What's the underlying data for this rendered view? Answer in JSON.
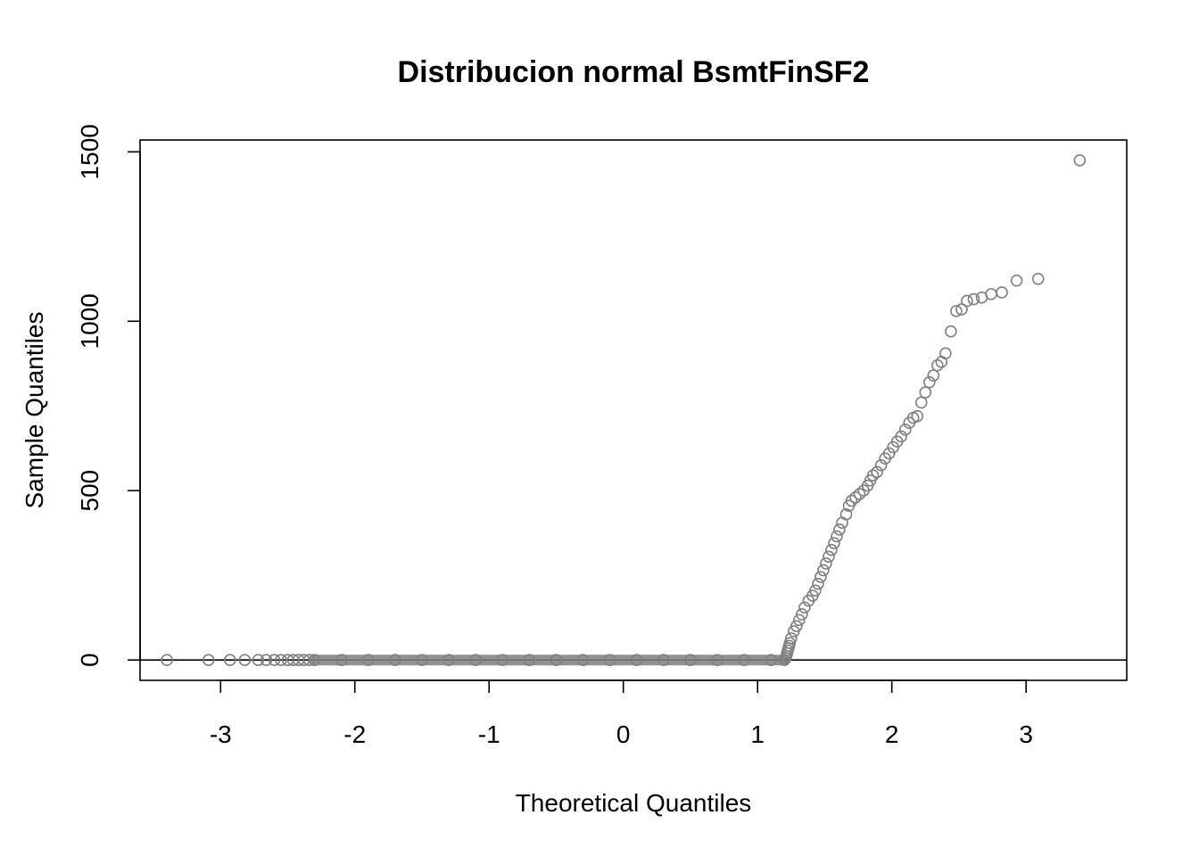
{
  "chart_data": {
    "type": "scatter",
    "title": "Distribucion normal BsmtFinSF2",
    "xlabel": "Theoretical Quantiles",
    "ylabel": "Sample Quantiles",
    "xlim": [
      -3.6,
      3.75
    ],
    "ylim": [
      -60,
      1535
    ],
    "xticks": [
      -3,
      -2,
      -1,
      0,
      1,
      2,
      3
    ],
    "xtick_labels": [
      "-3",
      "-2",
      "-1",
      "0",
      "1",
      "2",
      "3"
    ],
    "yticks": [
      0,
      500,
      1000,
      1500
    ],
    "ytick_labels": [
      "0",
      "500",
      "1000",
      "1500"
    ],
    "reference_line": {
      "type": "horizontal",
      "y": 0
    },
    "grid": false,
    "legend": "none",
    "point_color": "#808080",
    "x": [
      -3.4,
      -3.09,
      -2.93,
      -2.82,
      -2.72,
      -2.66,
      -2.6,
      -2.55,
      -2.5,
      -2.46,
      -2.42,
      -2.38,
      -2.34,
      -2.3,
      -2.1,
      -1.9,
      -1.7,
      -1.5,
      -1.3,
      -1.1,
      -0.9,
      -0.7,
      -0.5,
      -0.3,
      -0.1,
      0.1,
      0.3,
      0.5,
      0.7,
      0.9,
      1.1,
      1.2,
      1.21,
      1.215,
      1.22,
      1.225,
      1.23,
      1.235,
      1.24,
      1.25,
      1.27,
      1.29,
      1.31,
      1.33,
      1.35,
      1.38,
      1.41,
      1.43,
      1.45,
      1.47,
      1.49,
      1.51,
      1.53,
      1.55,
      1.57,
      1.59,
      1.61,
      1.63,
      1.66,
      1.68,
      1.7,
      1.73,
      1.76,
      1.79,
      1.82,
      1.84,
      1.86,
      1.89,
      1.92,
      1.95,
      1.98,
      2.01,
      2.04,
      2.07,
      2.1,
      2.13,
      2.16,
      2.19,
      2.22,
      2.25,
      2.28,
      2.31,
      2.34,
      2.37,
      2.4,
      2.44,
      2.48,
      2.52,
      2.56,
      2.61,
      2.67,
      2.74,
      2.82,
      2.93,
      3.09,
      3.4
    ],
    "y": [
      0,
      0,
      0,
      0,
      0,
      0,
      0,
      0,
      0,
      0,
      0,
      0,
      0,
      0,
      0,
      0,
      0,
      0,
      0,
      0,
      0,
      0,
      0,
      0,
      0,
      0,
      0,
      0,
      0,
      0,
      0,
      0,
      6,
      12,
      20,
      28,
      35,
      42,
      50,
      64,
      85,
      100,
      118,
      135,
      155,
      175,
      190,
      205,
      225,
      245,
      265,
      285,
      305,
      325,
      345,
      365,
      385,
      405,
      430,
      455,
      470,
      480,
      490,
      500,
      515,
      530,
      545,
      555,
      575,
      595,
      610,
      628,
      645,
      660,
      680,
      700,
      715,
      720,
      760,
      790,
      820,
      840,
      870,
      880,
      905,
      970,
      1030,
      1035,
      1060,
      1065,
      1070,
      1080,
      1085,
      1120,
      1125,
      1475
    ]
  }
}
